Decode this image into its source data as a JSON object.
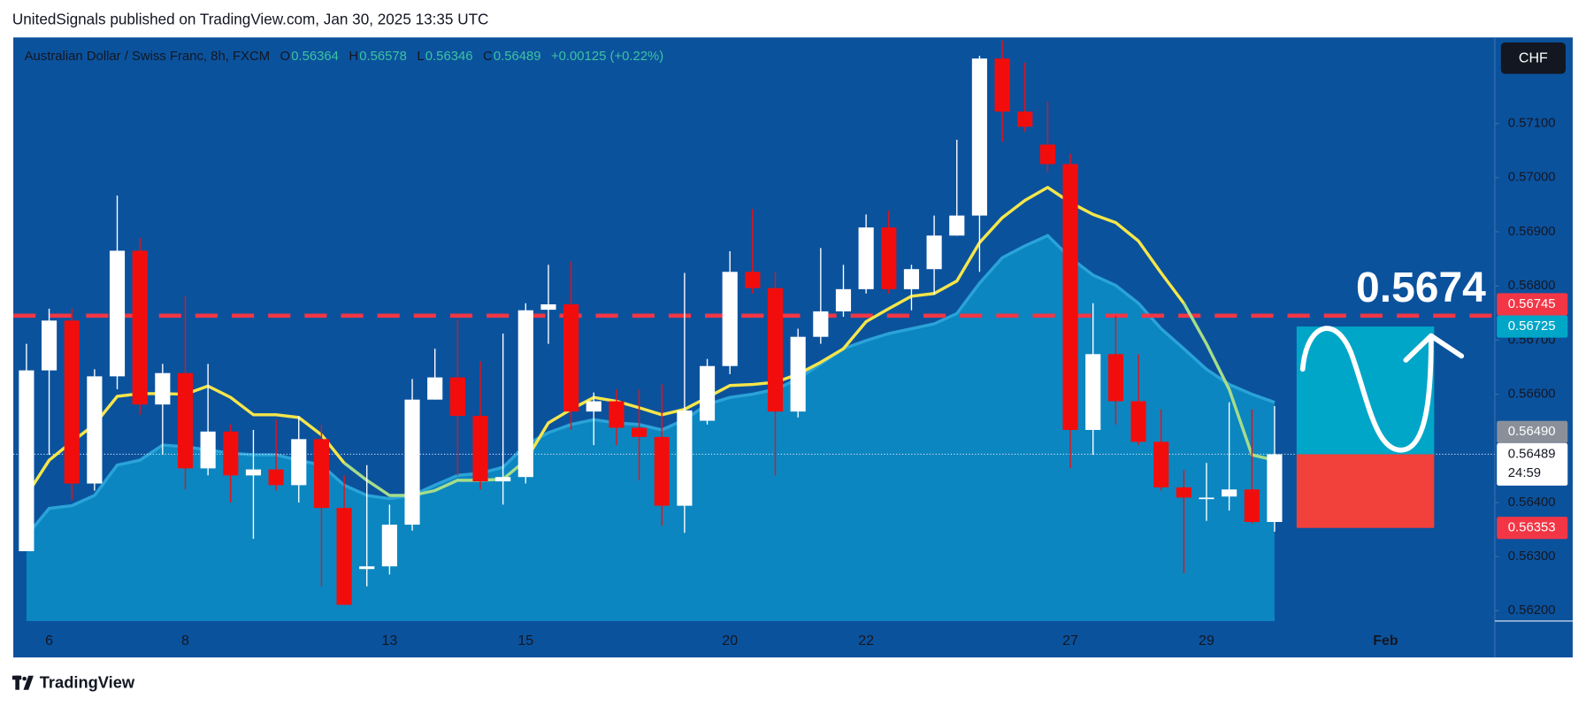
{
  "chart_data": {
    "type": "candlestick",
    "title": "UnitedSignals published on TradingView.com, Jan 30, 2025 13:35 UTC",
    "subtitle": "Australian Dollar / Swiss Franc, 8h, FXCM",
    "ohlc_letters": [
      "O",
      "H",
      "L",
      "C"
    ],
    "change": "+0.00125 (+0.22%)",
    "currency_button": "CHF",
    "footer_brand": "TradingView",
    "target_label": "0.5674",
    "countdown": "24:59",
    "future_label": "Feb",
    "up_color": "#ffffff",
    "down_color": "#f20d0d",
    "ylim": [
      0.56181,
      0.57259
    ],
    "yticks": [
      {
        "value": 0.562,
        "label": "0.56200"
      },
      {
        "value": 0.563,
        "label": "0.56300"
      },
      {
        "value": 0.564,
        "label": "0.56400"
      },
      {
        "value": 0.566,
        "label": "0.56600"
      },
      {
        "value": 0.567,
        "label": "0.56700"
      },
      {
        "value": 0.568,
        "label": "0.56800"
      },
      {
        "value": 0.569,
        "label": "0.56900"
      },
      {
        "value": 0.57,
        "label": "0.57000"
      },
      {
        "value": 0.571,
        "label": "0.57100"
      }
    ],
    "categories": [
      null,
      "6",
      null,
      null,
      null,
      null,
      null,
      "8",
      null,
      null,
      null,
      null,
      null,
      null,
      null,
      null,
      "13",
      null,
      null,
      null,
      null,
      null,
      "15",
      null,
      null,
      null,
      null,
      null,
      null,
      null,
      null,
      "20",
      null,
      null,
      null,
      null,
      null,
      "22",
      null,
      null,
      null,
      null,
      null,
      null,
      null,
      null,
      "27",
      null,
      null,
      null,
      null,
      null,
      "29",
      null,
      null,
      null
    ],
    "ohlc": [
      [
        0.5631,
        0.56693,
        0.5631,
        0.56644
      ],
      [
        0.56644,
        0.56758,
        0.56488,
        0.56736
      ],
      [
        0.56736,
        0.56758,
        0.56404,
        0.56435
      ],
      [
        0.56435,
        0.56646,
        0.56422,
        0.56633
      ],
      [
        0.56633,
        0.56967,
        0.56609,
        0.56865
      ],
      [
        0.56865,
        0.56889,
        0.56562,
        0.56581
      ],
      [
        0.56581,
        0.56656,
        0.56488,
        0.56639
      ],
      [
        0.56639,
        0.56781,
        0.56424,
        0.56463
      ],
      [
        0.56463,
        0.56656,
        0.5645,
        0.56531
      ],
      [
        0.56531,
        0.56544,
        0.564,
        0.5645
      ],
      [
        0.5645,
        0.56534,
        0.56333,
        0.56461
      ],
      [
        0.56461,
        0.56553,
        0.56422,
        0.56432
      ],
      [
        0.56432,
        0.56559,
        0.564,
        0.56517
      ],
      [
        0.56517,
        0.56544,
        0.56245,
        0.5639
      ],
      [
        0.5639,
        0.5645,
        0.56211,
        0.56211
      ],
      [
        0.56277,
        0.56469,
        0.56245,
        0.56282
      ],
      [
        0.56282,
        0.56396,
        0.56267,
        0.56359
      ],
      [
        0.56359,
        0.56628,
        0.56348,
        0.5659
      ],
      [
        0.5659,
        0.56684,
        0.5659,
        0.56631
      ],
      [
        0.56631,
        0.56738,
        0.5645,
        0.5656
      ],
      [
        0.5656,
        0.56661,
        0.56424,
        0.56439
      ],
      [
        0.56439,
        0.56712,
        0.56396,
        0.56447
      ],
      [
        0.56447,
        0.56768,
        0.56435,
        0.56755
      ],
      [
        0.56756,
        0.56839,
        0.56693,
        0.56766
      ],
      [
        0.56766,
        0.56845,
        0.56534,
        0.56568
      ],
      [
        0.56568,
        0.56603,
        0.56506,
        0.56587
      ],
      [
        0.56587,
        0.56609,
        0.56506,
        0.56538
      ],
      [
        0.56538,
        0.56609,
        0.56441,
        0.56521
      ],
      [
        0.56521,
        0.56618,
        0.56357,
        0.56394
      ],
      [
        0.56394,
        0.56824,
        0.56344,
        0.5657
      ],
      [
        0.56551,
        0.56665,
        0.56544,
        0.56652
      ],
      [
        0.56652,
        0.56864,
        0.56637,
        0.56826
      ],
      [
        0.56826,
        0.56942,
        0.56786,
        0.56796
      ],
      [
        0.56796,
        0.56826,
        0.5645,
        0.56568
      ],
      [
        0.56568,
        0.56721,
        0.56557,
        0.56706
      ],
      [
        0.56706,
        0.5687,
        0.56693,
        0.56753
      ],
      [
        0.56753,
        0.56839,
        0.56743,
        0.56794
      ],
      [
        0.56794,
        0.56932,
        0.56786,
        0.56908
      ],
      [
        0.56908,
        0.56939,
        0.56786,
        0.56794
      ],
      [
        0.56794,
        0.56839,
        0.56755,
        0.56831
      ],
      [
        0.56831,
        0.5693,
        0.56784,
        0.56893
      ],
      [
        0.56893,
        0.5707,
        0.56893,
        0.5693
      ],
      [
        0.5693,
        0.57225,
        0.56826,
        0.5722
      ],
      [
        0.5722,
        0.57253,
        0.57066,
        0.57122
      ],
      [
        0.57122,
        0.57212,
        0.57085,
        0.57094
      ],
      [
        0.57061,
        0.57141,
        0.5701,
        0.57025
      ],
      [
        0.57025,
        0.57044,
        0.56463,
        0.56534
      ],
      [
        0.56534,
        0.56768,
        0.56488,
        0.56674
      ],
      [
        0.56674,
        0.56745,
        0.56544,
        0.56587
      ],
      [
        0.56587,
        0.56674,
        0.56506,
        0.56512
      ],
      [
        0.56512,
        0.56572,
        0.56422,
        0.56428
      ],
      [
        0.56428,
        0.5646,
        0.56269,
        0.56409
      ],
      [
        0.56407,
        0.56473,
        0.56366,
        0.56409
      ],
      [
        0.56411,
        0.56585,
        0.56385,
        0.56424
      ],
      [
        0.56424,
        0.56572,
        0.56361,
        0.56364
      ],
      [
        0.56364,
        0.56578,
        0.56346,
        0.56489
      ]
    ],
    "series": [
      {
        "color": "#f5e64a",
        "values": [
          0.56413,
          0.56478,
          0.56512,
          0.56544,
          0.56596,
          0.56601,
          0.56601,
          0.566,
          0.56615,
          0.56594,
          0.56562,
          0.56562,
          0.56557,
          0.56525,
          0.56473,
          null,
          null,
          null,
          null,
          null,
          null,
          null,
          0.56478,
          0.56547,
          0.56572,
          0.56594,
          0.56587,
          0.56575,
          0.56562,
          0.56572,
          0.56594,
          0.56616,
          0.56618,
          0.56622,
          0.56637,
          0.56659,
          0.56684,
          0.56734,
          0.56758,
          0.56781,
          0.56786,
          0.56809,
          0.5688,
          0.56926,
          0.56958,
          0.56982,
          0.56954,
          0.56932,
          0.56917,
          0.56883,
          0.56824,
          0.56768,
          null,
          null,
          null,
          null
        ]
      },
      {
        "color": "#a6dd8a",
        "values": [
          null,
          null,
          null,
          null,
          null,
          null,
          null,
          null,
          null,
          null,
          null,
          null,
          null,
          null,
          0.56473,
          0.56441,
          0.56413,
          0.56413,
          0.56422,
          0.56441,
          0.56441,
          0.56443,
          0.56478,
          null,
          null,
          null,
          null,
          null,
          null,
          null,
          null,
          null,
          null,
          null,
          null,
          null,
          null,
          null,
          null,
          null,
          null,
          null,
          null,
          null,
          null,
          null,
          null,
          null,
          null,
          null,
          null,
          0.56768,
          0.56693,
          0.56609,
          0.56488,
          0.56478
        ]
      }
    ],
    "area": {
      "color": "#0c86c0",
      "line_color": "#2aa3d8",
      "values": [
        0.56338,
        0.56389,
        0.56394,
        0.56413,
        0.56469,
        0.56478,
        0.56506,
        0.56503,
        0.56497,
        0.56491,
        0.56488,
        0.56488,
        0.56478,
        0.56469,
        0.56432,
        0.56413,
        0.56407,
        0.56413,
        0.56432,
        0.5645,
        0.56454,
        0.56465,
        0.56506,
        0.56529,
        0.56544,
        0.56553,
        0.56547,
        0.56544,
        0.56534,
        0.56553,
        0.56581,
        0.56594,
        0.566,
        0.56609,
        0.56628,
        0.56656,
        0.56684,
        0.56699,
        0.56712,
        0.56721,
        0.5673,
        0.56749,
        0.56805,
        0.56852,
        0.56874,
        0.56893,
        0.56852,
        0.5682,
        0.56801,
        0.56768,
        0.56721,
        0.56684,
        0.56646,
        0.56618,
        0.566,
        0.56585
      ]
    },
    "level_line": {
      "value": 0.56745,
      "color": "#f23645"
    },
    "position": {
      "target": 0.56725,
      "entry": 0.56489,
      "stop": 0.56353,
      "target_color": "#00a6c8",
      "stop_color": "#f2403a"
    },
    "price_labels": [
      {
        "value": 0.56745,
        "label": "0.56745",
        "color": "#f23645"
      },
      {
        "value": 0.56725,
        "label": "0.56725",
        "color": "#00a6c8"
      },
      {
        "value": 0.5649,
        "label": "0.56490",
        "color": "#8a8f99"
      },
      {
        "value": 0.56489,
        "label": "0.56489",
        "color": "#ffffff"
      },
      {
        "value": 0.56353,
        "label": "0.56353",
        "color": "#f23645"
      }
    ]
  }
}
